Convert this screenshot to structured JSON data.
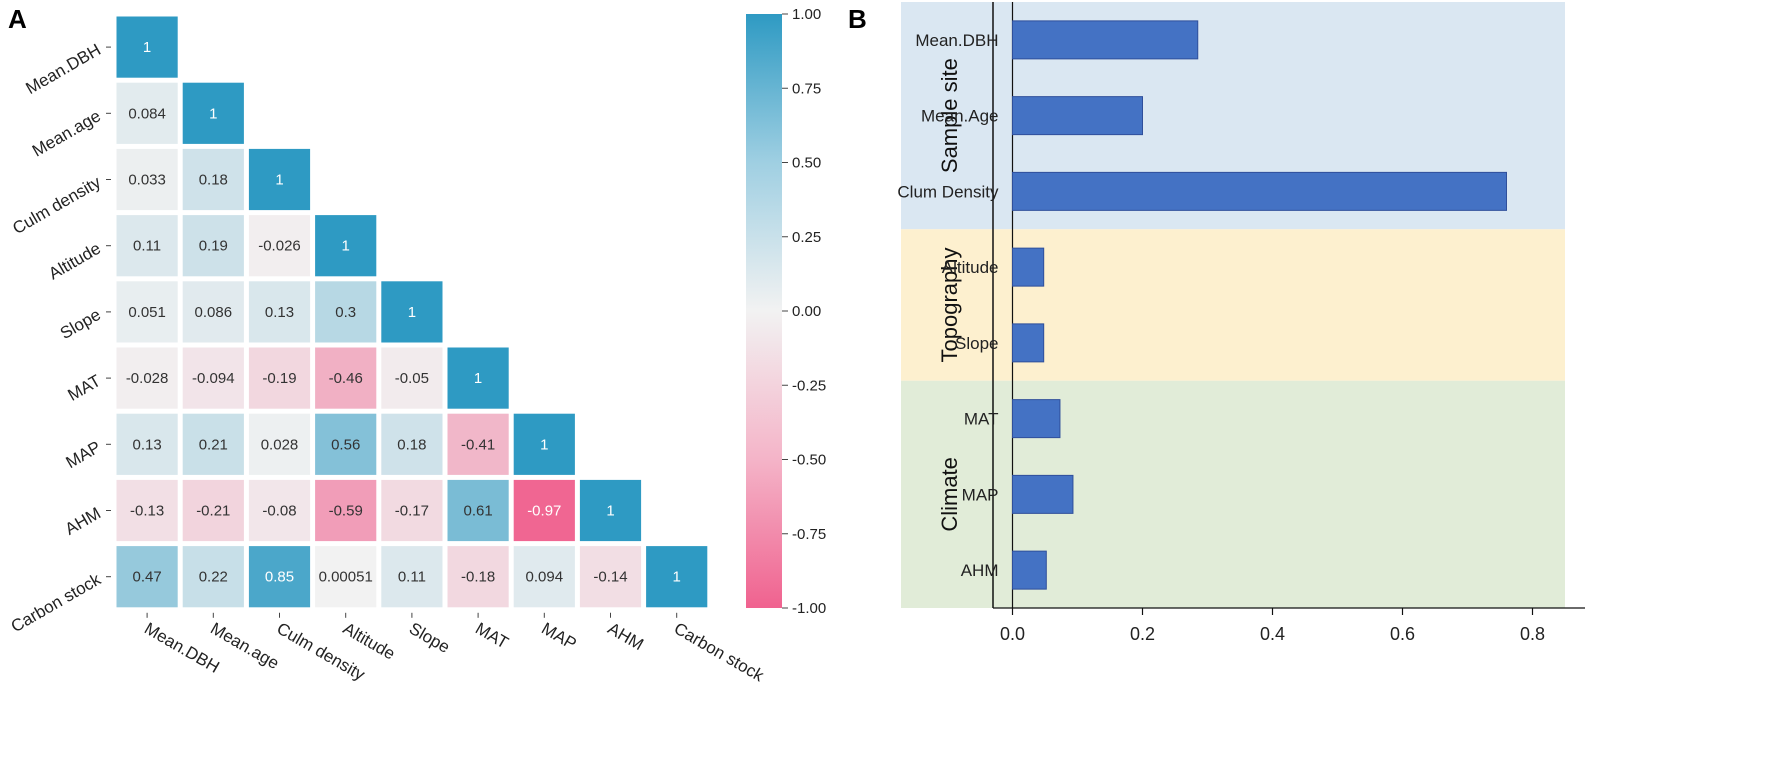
{
  "panels": {
    "a_label": "A",
    "b_label": "B"
  },
  "colors": {
    "positive": "#2e9ac3",
    "neutral": "#f2f2f2",
    "negative": "#f0628f",
    "bar_fill": "#4472c4",
    "bar_edge": "#2f4f9b",
    "group_sample_site": "#dae7f2",
    "group_topography": "#fdf0cf",
    "group_climate": "#e1ecd8"
  },
  "chart_data": [
    {
      "type": "heatmap",
      "title": "",
      "variables": [
        "Mean.DBH",
        "Mean.age",
        "Culm density",
        "Altitude",
        "Slope",
        "MAT",
        "MAP",
        "AHM",
        "Carbon stock"
      ],
      "matrix": [
        [
          1
        ],
        [
          0.084,
          1
        ],
        [
          0.033,
          0.18,
          1
        ],
        [
          0.11,
          0.19,
          -0.026,
          1
        ],
        [
          0.051,
          0.086,
          0.13,
          0.3,
          1
        ],
        [
          -0.028,
          -0.094,
          -0.19,
          -0.46,
          -0.05,
          1
        ],
        [
          0.13,
          0.21,
          0.028,
          0.56,
          0.18,
          -0.41,
          1
        ],
        [
          -0.13,
          -0.21,
          -0.08,
          -0.59,
          -0.17,
          0.61,
          -0.97,
          1
        ],
        [
          0.47,
          0.22,
          0.85,
          0.00051,
          0.11,
          -0.18,
          0.094,
          -0.14,
          1
        ]
      ],
      "colorbar": {
        "range": [
          -1.0,
          1.0
        ],
        "ticks": [
          1.0,
          0.75,
          0.5,
          0.25,
          0.0,
          -0.25,
          -0.5,
          -0.75,
          -1.0
        ],
        "tick_labels": [
          "1.00",
          "0.75",
          "0.50",
          "0.25",
          "0.00",
          "-0.25",
          "-0.50",
          "-0.75",
          "-1.00"
        ]
      }
    },
    {
      "type": "bar",
      "orientation": "horizontal",
      "title": "",
      "categories": [
        "Mean.DBH",
        "Mean.Age",
        "Clum Density",
        "Altitude",
        "Slope",
        "MAT",
        "MAP",
        "AHM"
      ],
      "values": [
        0.285,
        0.2,
        0.76,
        0.048,
        0.048,
        0.073,
        0.093,
        0.052
      ],
      "groups": [
        {
          "name": "Sample site",
          "categories": [
            "Mean.DBH",
            "Mean.Age",
            "Clum Density"
          ]
        },
        {
          "name": "Topography",
          "categories": [
            "Altitude",
            "Slope"
          ]
        },
        {
          "name": "Climate",
          "categories": [
            "MAT",
            "MAP",
            "AHM"
          ]
        }
      ],
      "xlim": [
        -0.03,
        0.85
      ],
      "xticks": [
        0.0,
        0.2,
        0.4,
        0.6,
        0.8
      ],
      "xtick_labels": [
        "0.0",
        "0.2",
        "0.4",
        "0.6",
        "0.8"
      ]
    }
  ]
}
